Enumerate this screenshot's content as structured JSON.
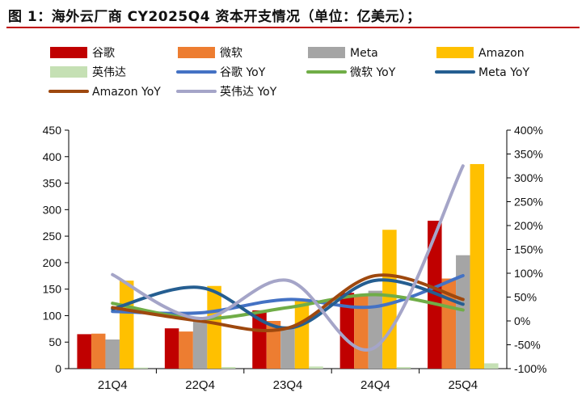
{
  "title": "图 1：海外云厂商 CY2025Q4 资本开支情况（单位：亿美元）；",
  "colors": {
    "谷歌": "#c00000",
    "微软": "#ed7d31",
    "Meta": "#a5a5a5",
    "Amazon": "#ffc000",
    "英伟达": "#c5e0b4",
    "谷歌 YoY": "#4472c4",
    "微软 YoY": "#70ad47",
    "Meta YoY": "#255e91",
    "Amazon YoY": "#9e480e",
    "英伟达 YoY": "#a5a5c8"
  },
  "chart_data": {
    "type": "bar",
    "categories": [
      "21Q4",
      "22Q4",
      "23Q4",
      "24Q4",
      "25Q4"
    ],
    "ylim": [
      0,
      450
    ],
    "yticks": [
      0,
      50,
      100,
      150,
      200,
      250,
      300,
      350,
      400,
      450
    ],
    "y2lim": [
      -100,
      400
    ],
    "y2ticks": [
      "-100%",
      "-50%",
      "0%",
      "50%",
      "100%",
      "150%",
      "200%",
      "250%",
      "300%",
      "350%",
      "400%"
    ],
    "y2tick_values": [
      -100,
      -50,
      0,
      50,
      100,
      150,
      200,
      250,
      300,
      350,
      400
    ],
    "legend_order": [
      "谷歌",
      "微软",
      "Meta",
      "Amazon",
      "英伟达",
      "谷歌 YoY",
      "微软 YoY",
      "Meta YoY",
      "Amazon YoY",
      "英伟达 YoY"
    ],
    "series": [
      {
        "name": "谷歌",
        "values": [
          65,
          76,
          110,
          143,
          279
        ]
      },
      {
        "name": "微软",
        "values": [
          66,
          70,
          90,
          140,
          170
        ]
      },
      {
        "name": "Meta",
        "values": [
          55,
          93,
          80,
          147,
          214
        ]
      },
      {
        "name": "Amazon",
        "values": [
          166,
          156,
          132,
          262,
          386
        ]
      },
      {
        "name": "英伟达",
        "values": [
          2,
          3,
          4,
          3,
          10
        ]
      }
    ],
    "line_series": [
      {
        "name": "谷歌 YoY",
        "values": [
          20,
          17,
          45,
          30,
          95
        ]
      },
      {
        "name": "微软 YoY",
        "values": [
          37,
          5,
          28,
          55,
          23
        ]
      },
      {
        "name": "Meta YoY",
        "values": [
          25,
          70,
          -15,
          85,
          35
        ]
      },
      {
        "name": "Amazon YoY",
        "values": [
          28,
          0,
          -15,
          95,
          45
        ]
      },
      {
        "name": "英伟达 YoY",
        "values": [
          97,
          5,
          85,
          -55,
          325
        ]
      }
    ]
  }
}
